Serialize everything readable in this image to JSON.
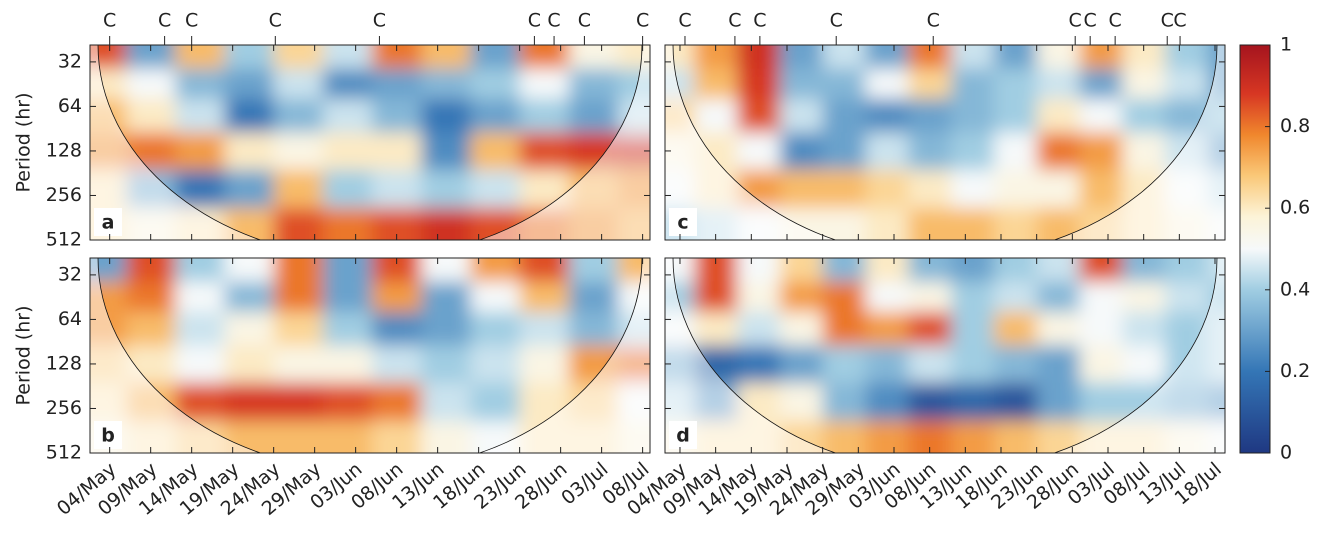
{
  "chart_data": [
    {
      "type": "heatmap",
      "panel_label": "a",
      "ylabel": "Period (hr)",
      "log_scale": true,
      "y_inverted": true,
      "xlim": [
        1.6,
        69.9
      ],
      "ylim": [
        24.6,
        512
      ],
      "yticks": [
        32,
        64,
        128,
        256,
        512
      ],
      "show_ytick_labels": true,
      "show_xtick_labels": false,
      "xticks": [
        {
          "value": 4,
          "label": "04/May"
        },
        {
          "value": 9,
          "label": "09/May"
        },
        {
          "value": 14,
          "label": "14/May"
        },
        {
          "value": 19,
          "label": "19/May"
        },
        {
          "value": 24,
          "label": "24/May"
        },
        {
          "value": 29,
          "label": "29/May"
        },
        {
          "value": 34,
          "label": "03/Jun"
        },
        {
          "value": 39,
          "label": "08/Jun"
        },
        {
          "value": 44,
          "label": "13/Jun"
        },
        {
          "value": 49,
          "label": "18/Jun"
        },
        {
          "value": 54,
          "label": "23/Jun"
        },
        {
          "value": 59,
          "label": "28/Jun"
        },
        {
          "value": 64,
          "label": "03/Jul"
        },
        {
          "value": 69,
          "label": "08/Jul"
        }
      ],
      "events": [
        {
          "x": 4,
          "label": "C"
        },
        {
          "x": 10.7,
          "label": "C"
        },
        {
          "x": 14,
          "label": "C"
        },
        {
          "x": 24.2,
          "label": "C"
        },
        {
          "x": 36.9,
          "label": "C"
        },
        {
          "x": 55.8,
          "label": "C"
        },
        {
          "x": 58.2,
          "label": "C"
        },
        {
          "x": 61.9,
          "label": "C"
        },
        {
          "x": 69,
          "label": "C"
        }
      ],
      "x": [
        3,
        9,
        15,
        21,
        27,
        33,
        39,
        45,
        51,
        57,
        63,
        69
      ],
      "periods": [
        28,
        45,
        72,
        128,
        230,
        420
      ],
      "z": [
        [
          0.85,
          0.3,
          0.7,
          0.4,
          0.65,
          0.45,
          0.8,
          0.7,
          0.3,
          0.8,
          0.55,
          0.6
        ],
        [
          0.6,
          0.5,
          0.35,
          0.3,
          0.45,
          0.25,
          0.3,
          0.35,
          0.4,
          0.5,
          0.35,
          0.4
        ],
        [
          0.7,
          0.6,
          0.45,
          0.2,
          0.35,
          0.45,
          0.35,
          0.2,
          0.3,
          0.4,
          0.3,
          0.45
        ],
        [
          0.75,
          0.8,
          0.75,
          0.6,
          0.55,
          0.6,
          0.6,
          0.25,
          0.7,
          0.85,
          0.88,
          0.9
        ],
        [
          0.6,
          0.35,
          0.2,
          0.3,
          0.7,
          0.4,
          0.45,
          0.4,
          0.45,
          0.6,
          0.7,
          0.75
        ],
        [
          0.6,
          0.55,
          0.6,
          0.7,
          0.85,
          0.8,
          0.85,
          0.9,
          0.85,
          0.8,
          0.75,
          0.7
        ]
      ]
    },
    {
      "type": "heatmap",
      "panel_label": "b",
      "ylabel": "Period (hr)",
      "log_scale": true,
      "y_inverted": true,
      "xlim": [
        1.6,
        69.9
      ],
      "ylim": [
        24.6,
        512
      ],
      "yticks": [
        32,
        64,
        128,
        256,
        512
      ],
      "show_ytick_labels": true,
      "show_xtick_labels": true,
      "xticks": [
        {
          "value": 4,
          "label": "04/May"
        },
        {
          "value": 9,
          "label": "09/May"
        },
        {
          "value": 14,
          "label": "14/May"
        },
        {
          "value": 19,
          "label": "19/May"
        },
        {
          "value": 24,
          "label": "24/May"
        },
        {
          "value": 29,
          "label": "29/May"
        },
        {
          "value": 34,
          "label": "03/Jun"
        },
        {
          "value": 39,
          "label": "08/Jun"
        },
        {
          "value": 44,
          "label": "13/Jun"
        },
        {
          "value": 49,
          "label": "18/Jun"
        },
        {
          "value": 54,
          "label": "23/Jun"
        },
        {
          "value": 59,
          "label": "28/Jun"
        },
        {
          "value": 64,
          "label": "03/Jul"
        },
        {
          "value": 69,
          "label": "08/Jul"
        }
      ],
      "x": [
        3,
        9,
        15,
        21,
        27,
        33,
        39,
        45,
        51,
        57,
        63,
        69
      ],
      "periods": [
        28,
        45,
        72,
        128,
        230,
        420
      ],
      "z": [
        [
          0.3,
          0.85,
          0.4,
          0.5,
          0.8,
          0.3,
          0.85,
          0.5,
          0.75,
          0.85,
          0.4,
          0.7
        ],
        [
          0.75,
          0.8,
          0.5,
          0.35,
          0.8,
          0.3,
          0.75,
          0.3,
          0.5,
          0.7,
          0.3,
          0.5
        ],
        [
          0.75,
          0.7,
          0.45,
          0.55,
          0.65,
          0.4,
          0.25,
          0.3,
          0.4,
          0.45,
          0.35,
          0.45
        ],
        [
          0.65,
          0.6,
          0.5,
          0.6,
          0.55,
          0.55,
          0.45,
          0.4,
          0.45,
          0.55,
          0.75,
          0.8
        ],
        [
          0.6,
          0.7,
          0.85,
          0.88,
          0.88,
          0.85,
          0.8,
          0.45,
          0.4,
          0.6,
          0.65,
          0.5
        ],
        [
          0.55,
          0.6,
          0.65,
          0.7,
          0.7,
          0.7,
          0.65,
          0.55,
          0.5,
          0.6,
          0.6,
          0.55
        ]
      ]
    },
    {
      "type": "heatmap",
      "panel_label": "c",
      "log_scale": true,
      "y_inverted": true,
      "xlim": [
        1.9,
        80.4
      ],
      "ylim": [
        24.6,
        512
      ],
      "yticks": [
        32,
        64,
        128,
        256,
        512
      ],
      "show_ytick_labels": false,
      "show_xtick_labels": false,
      "xticks": [
        {
          "value": 4,
          "label": "04/May"
        },
        {
          "value": 9,
          "label": "09/May"
        },
        {
          "value": 14,
          "label": "14/May"
        },
        {
          "value": 19,
          "label": "19/May"
        },
        {
          "value": 24,
          "label": "24/May"
        },
        {
          "value": 29,
          "label": "29/May"
        },
        {
          "value": 34,
          "label": "03/Jun"
        },
        {
          "value": 39,
          "label": "08/Jun"
        },
        {
          "value": 44,
          "label": "13/Jun"
        },
        {
          "value": 49,
          "label": "18/Jun"
        },
        {
          "value": 54,
          "label": "23/Jun"
        },
        {
          "value": 59,
          "label": "28/Jun"
        },
        {
          "value": 64,
          "label": "03/Jul"
        },
        {
          "value": 69,
          "label": "08/Jul"
        },
        {
          "value": 74,
          "label": "13/Jul"
        },
        {
          "value": 79,
          "label": "18/Jul"
        }
      ],
      "events": [
        {
          "x": 4.7,
          "label": "C"
        },
        {
          "x": 11.7,
          "label": "C"
        },
        {
          "x": 15.2,
          "label": "C"
        },
        {
          "x": 25.9,
          "label": "C"
        },
        {
          "x": 39.5,
          "label": "C"
        },
        {
          "x": 59.4,
          "label": "C"
        },
        {
          "x": 61.5,
          "label": "C"
        },
        {
          "x": 65,
          "label": "C"
        },
        {
          "x": 72.3,
          "label": "C"
        },
        {
          "x": 74.1,
          "label": "C"
        }
      ],
      "x": [
        3,
        9,
        15,
        21,
        27,
        33,
        39,
        45,
        51,
        57,
        63,
        69,
        75,
        81
      ],
      "periods": [
        28,
        45,
        72,
        128,
        230,
        420
      ],
      "z": [
        [
          0.6,
          0.75,
          0.9,
          0.3,
          0.45,
          0.3,
          0.8,
          0.45,
          0.3,
          0.55,
          0.75,
          0.6,
          0.4,
          0.3
        ],
        [
          0.45,
          0.7,
          0.88,
          0.35,
          0.35,
          0.5,
          0.65,
          0.35,
          0.4,
          0.45,
          0.3,
          0.55,
          0.45,
          0.3
        ],
        [
          0.65,
          0.5,
          0.85,
          0.45,
          0.3,
          0.25,
          0.3,
          0.35,
          0.4,
          0.6,
          0.5,
          0.4,
          0.35,
          0.4
        ],
        [
          0.55,
          0.6,
          0.5,
          0.25,
          0.3,
          0.45,
          0.35,
          0.4,
          0.5,
          0.8,
          0.75,
          0.55,
          0.45,
          0.3
        ],
        [
          0.5,
          0.6,
          0.75,
          0.7,
          0.7,
          0.65,
          0.6,
          0.5,
          0.55,
          0.55,
          0.7,
          0.6,
          0.5,
          0.45
        ],
        [
          0.4,
          0.45,
          0.5,
          0.55,
          0.55,
          0.6,
          0.7,
          0.7,
          0.65,
          0.7,
          0.65,
          0.6,
          0.55,
          0.5
        ]
      ]
    },
    {
      "type": "heatmap",
      "panel_label": "d",
      "log_scale": true,
      "y_inverted": true,
      "xlim": [
        1.9,
        80.4
      ],
      "ylim": [
        24.6,
        512
      ],
      "yticks": [
        32,
        64,
        128,
        256,
        512
      ],
      "show_ytick_labels": false,
      "show_xtick_labels": true,
      "xticks": [
        {
          "value": 4,
          "label": "04/May"
        },
        {
          "value": 9,
          "label": "09/May"
        },
        {
          "value": 14,
          "label": "14/May"
        },
        {
          "value": 19,
          "label": "19/May"
        },
        {
          "value": 24,
          "label": "24/May"
        },
        {
          "value": 29,
          "label": "29/May"
        },
        {
          "value": 34,
          "label": "03/Jun"
        },
        {
          "value": 39,
          "label": "08/Jun"
        },
        {
          "value": 44,
          "label": "13/Jun"
        },
        {
          "value": 49,
          "label": "18/Jun"
        },
        {
          "value": 54,
          "label": "23/Jun"
        },
        {
          "value": 59,
          "label": "28/Jun"
        },
        {
          "value": 64,
          "label": "03/Jul"
        },
        {
          "value": 69,
          "label": "08/Jul"
        },
        {
          "value": 74,
          "label": "13/Jul"
        },
        {
          "value": 79,
          "label": "18/Jul"
        }
      ],
      "x": [
        3,
        9,
        15,
        21,
        27,
        33,
        39,
        45,
        51,
        57,
        63,
        69,
        75,
        81
      ],
      "periods": [
        28,
        45,
        72,
        128,
        230,
        420
      ],
      "z": [
        [
          0.5,
          0.85,
          0.5,
          0.65,
          0.35,
          0.6,
          0.35,
          0.3,
          0.4,
          0.45,
          0.85,
          0.35,
          0.4,
          0.45
        ],
        [
          0.4,
          0.85,
          0.55,
          0.75,
          0.8,
          0.5,
          0.55,
          0.4,
          0.45,
          0.35,
          0.5,
          0.55,
          0.45,
          0.4
        ],
        [
          0.5,
          0.6,
          0.45,
          0.55,
          0.8,
          0.75,
          0.85,
          0.4,
          0.7,
          0.55,
          0.5,
          0.45,
          0.4,
          0.45
        ],
        [
          0.35,
          0.15,
          0.2,
          0.3,
          0.4,
          0.35,
          0.45,
          0.4,
          0.35,
          0.3,
          0.55,
          0.5,
          0.4,
          0.45
        ],
        [
          0.45,
          0.3,
          0.6,
          0.55,
          0.35,
          0.25,
          0.1,
          0.15,
          0.1,
          0.3,
          0.4,
          0.4,
          0.35,
          0.3
        ],
        [
          0.55,
          0.6,
          0.6,
          0.65,
          0.7,
          0.75,
          0.8,
          0.75,
          0.7,
          0.65,
          0.6,
          0.6,
          0.55,
          0.5
        ]
      ]
    }
  ],
  "colorbar": {
    "lim": [
      0,
      1
    ],
    "ticks": [
      0,
      0.2,
      0.4,
      0.6,
      0.8,
      1
    ]
  }
}
